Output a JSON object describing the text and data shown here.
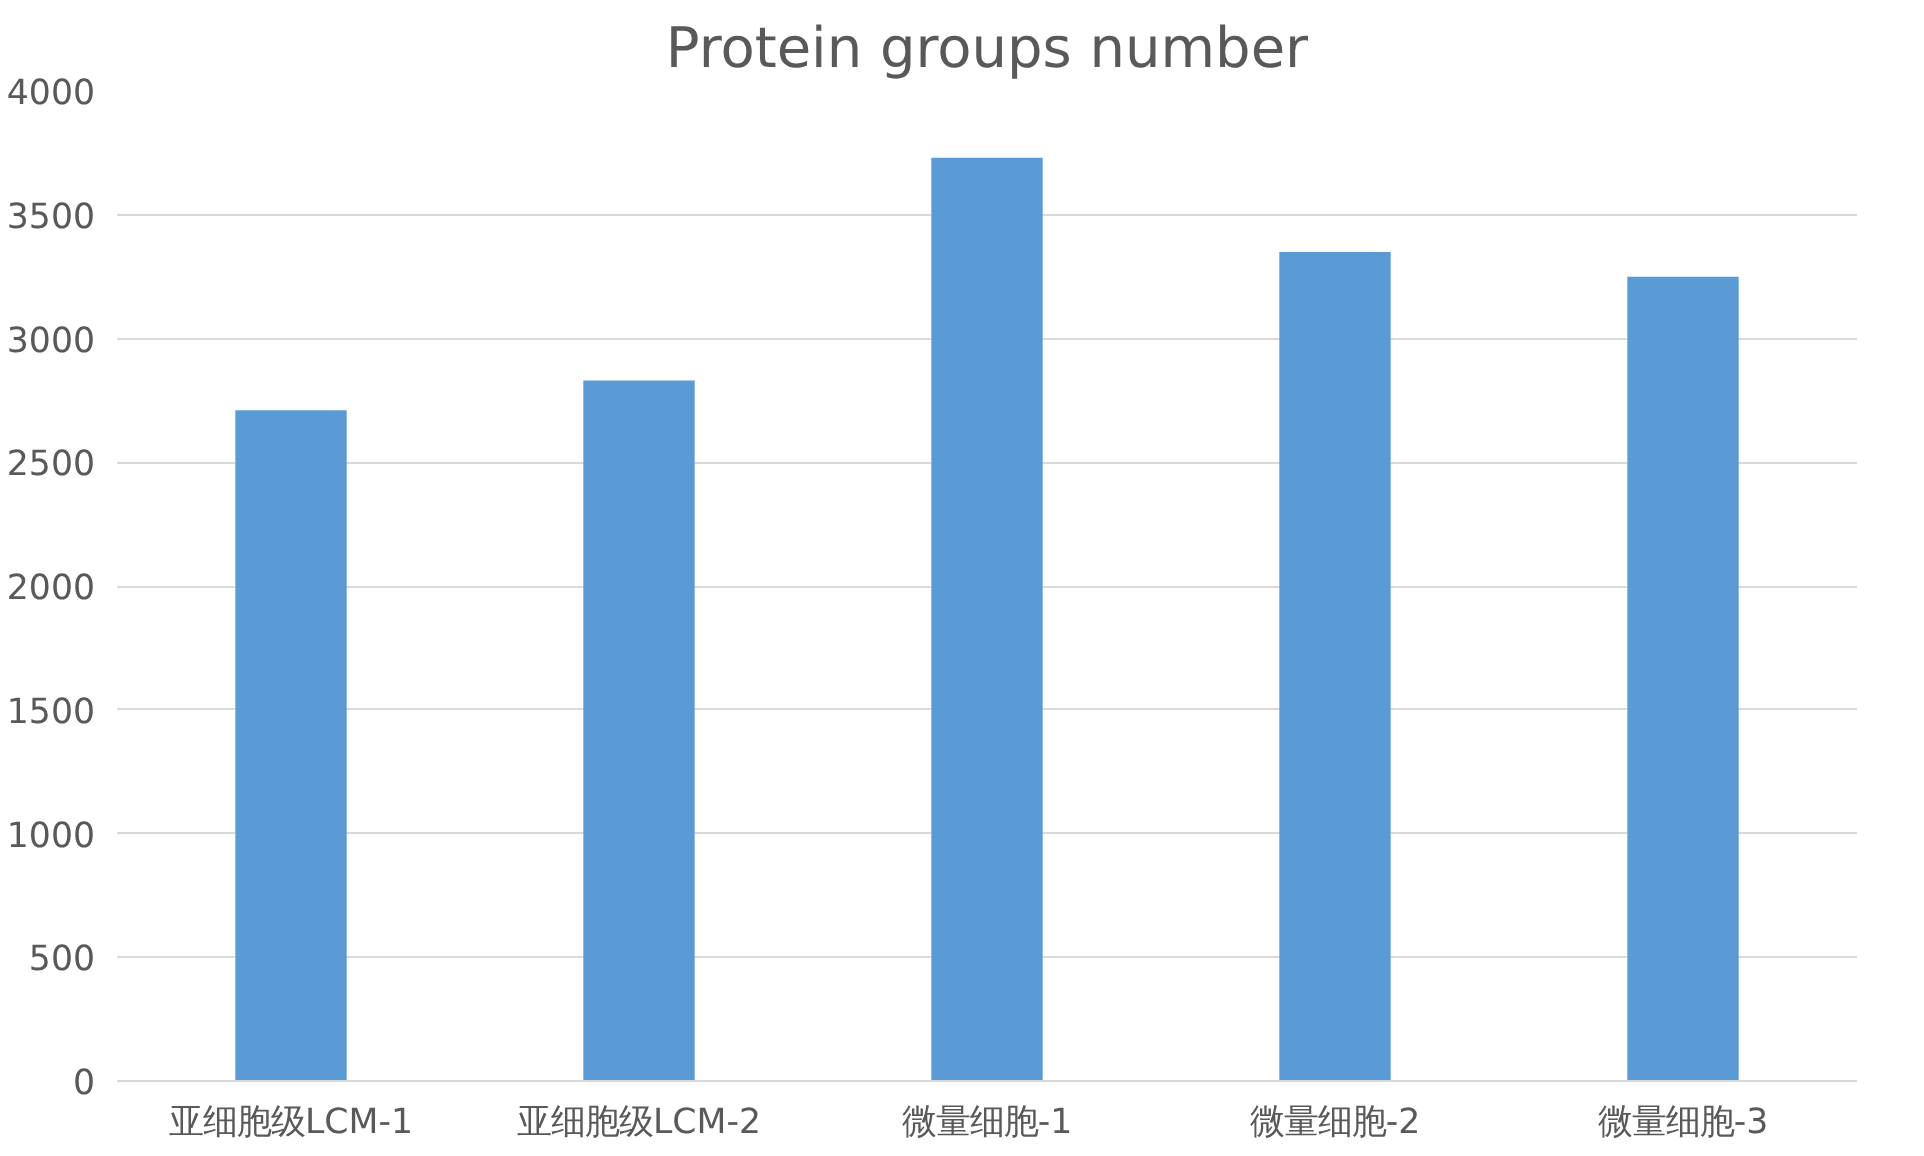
{
  "chart_data": {
    "type": "bar",
    "title": "Protein groups number",
    "categories": [
      "亚细胞级LCM-1",
      "亚细胞级LCM-2",
      "微量细胞-1",
      "微量细胞-2",
      "微量细胞-3"
    ],
    "values": [
      2710,
      2830,
      3730,
      3350,
      3250
    ],
    "color": "#5b9bd5",
    "ylim": [
      0,
      4000
    ],
    "yticks": [
      0,
      500,
      1000,
      1500,
      2000,
      2500,
      3000,
      3500,
      4000
    ],
    "grid": "y"
  }
}
